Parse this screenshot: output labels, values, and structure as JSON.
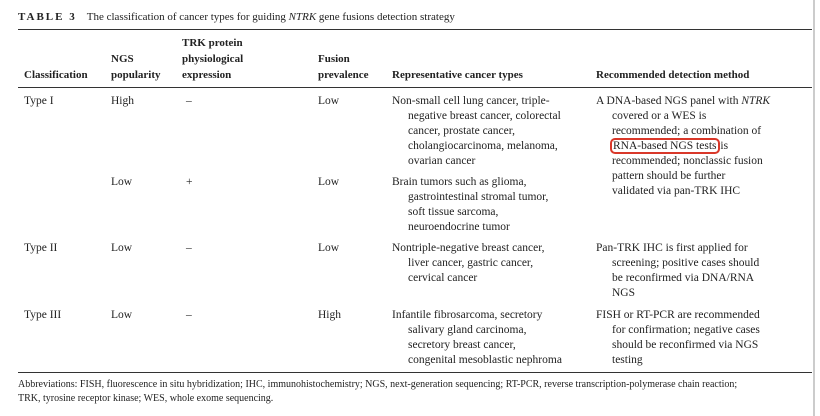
{
  "caption": {
    "label": "TABLE 3",
    "text_before": "The classification of cancer types for guiding",
    "italic": "NTRK",
    "text_after": "gene fusions detection strategy"
  },
  "table": {
    "header": [
      [
        "Classification"
      ],
      [
        "NGS",
        "popularity"
      ],
      [
        "TRK protein",
        "physiological",
        "expression"
      ],
      [
        "Fusion",
        "prevalence"
      ],
      [
        "Representative cancer types"
      ],
      [
        "Recommended detection method"
      ]
    ],
    "rows": [
      {
        "classification": "Type I",
        "ngs": "High",
        "trk": "–",
        "fusion": "Low",
        "cancer_types": [
          "Non-small cell lung cancer, triple-",
          "negative breast cancer, colorectal",
          "cancer, prostate cancer,",
          "cholangiocarcinoma, melanoma,",
          "ovarian cancer"
        ],
        "method": [
          [
            "A DNA-based NGS panel with",
            "NTRK"
          ],
          "covered or a WES is",
          "recommended; a combination of",
          [
            "RNA-based NGS tests",
            "is"
          ],
          "recommended; nonclassic fusion",
          "pattern should be further",
          "validated via pan-TRK IHC"
        ]
      },
      {
        "ngs": "Low",
        "trk": "+",
        "fusion": "Low",
        "cancer_types": [
          "Brain tumors such as glioma,",
          "gastrointestinal stromal tumor,",
          "soft tissue sarcoma,",
          "neuroendocrine tumor"
        ]
      },
      {
        "classification": "Type II",
        "ngs": "Low",
        "trk": "–",
        "fusion": "Low",
        "cancer_types": [
          "Nontriple-negative breast cancer,",
          "liver cancer, gastric cancer,",
          "cervical cancer"
        ],
        "method": [
          "Pan-TRK IHC is first applied for",
          "screening; positive cases should",
          "be reconfirmed via DNA/RNA",
          "NGS"
        ]
      },
      {
        "classification": "Type III",
        "ngs": "Low",
        "trk": "–",
        "fusion": "High",
        "cancer_types": [
          "Infantile fibrosarcoma, secretory",
          "salivary gland carcinoma,",
          "secretory breast cancer,",
          "congenital mesoblastic nephroma"
        ],
        "method": [
          "FISH or RT-PCR are recommended",
          "for confirmation; negative cases",
          "should be reconfirmed via NGS",
          "testing"
        ]
      }
    ]
  },
  "footnote": [
    "Abbreviations: FISH, fluorescence in situ hybridization; IHC, immunohistochemistry; NGS, next-generation sequencing; RT-PCR, reverse transcription-polymerase chain reaction;",
    "TRK, tyrosine receptor kinase; WES, whole exome sequencing."
  ]
}
